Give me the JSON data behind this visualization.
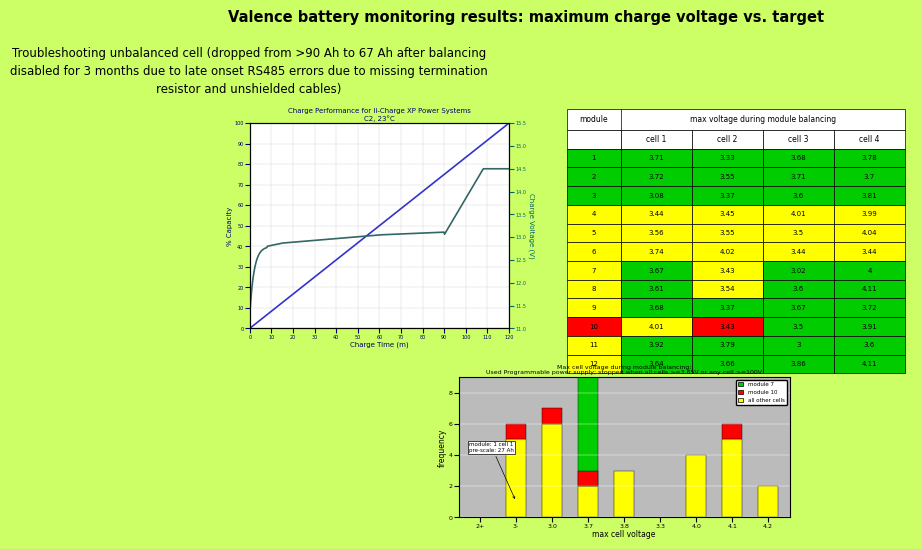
{
  "bg_color": "#ccff66",
  "title": "Valence battery monitoring results: maximum charge voltage vs. target",
  "subtitle": "Troubleshooting unbalanced cell (dropped from >90 Ah to 67 Ah after balancing\ndisabled for 3 months due to late onset RS485 errors due to missing termination\nresistor and unshielded cables)",
  "title_fontsize": 10.5,
  "subtitle_fontsize": 8.5,
  "table_data": [
    [
      1,
      3.71,
      3.33,
      3.68,
      3.78
    ],
    [
      2,
      3.72,
      3.55,
      3.71,
      3.7
    ],
    [
      3,
      3.08,
      3.37,
      3.6,
      3.81
    ],
    [
      4,
      3.44,
      3.45,
      4.01,
      3.99
    ],
    [
      5,
      3.56,
      3.55,
      3.5,
      4.04
    ],
    [
      6,
      3.74,
      4.02,
      3.44,
      3.44
    ],
    [
      7,
      3.67,
      3.43,
      3.02,
      4.0
    ],
    [
      8,
      3.61,
      3.54,
      3.6,
      4.11
    ],
    [
      9,
      3.68,
      3.37,
      3.67,
      3.72
    ],
    [
      10,
      4.01,
      3.43,
      3.5,
      3.91
    ],
    [
      11,
      3.92,
      3.79,
      3.0,
      3.6
    ],
    [
      12,
      3.64,
      3.66,
      3.86,
      4.11
    ]
  ],
  "row_colors": [
    [
      "#00cc00",
      "#00cc00",
      "#00cc00",
      "#00cc00",
      "#00cc00"
    ],
    [
      "#00cc00",
      "#00cc00",
      "#00cc00",
      "#00cc00",
      "#00cc00"
    ],
    [
      "#00cc00",
      "#00cc00",
      "#00cc00",
      "#00cc00",
      "#00cc00"
    ],
    [
      "#ffff00",
      "#ffff00",
      "#ffff00",
      "#ffff00",
      "#ffff00"
    ],
    [
      "#ffff00",
      "#ffff00",
      "#ffff00",
      "#ffff00",
      "#ffff00"
    ],
    [
      "#ffff00",
      "#ffff00",
      "#ffff00",
      "#ffff00",
      "#ffff00"
    ],
    [
      "#ffff00",
      "#00cc00",
      "#ffff00",
      "#00cc00",
      "#00cc00"
    ],
    [
      "#ffff00",
      "#00cc00",
      "#ffff00",
      "#00cc00",
      "#00cc00"
    ],
    [
      "#ffff00",
      "#00cc00",
      "#00cc00",
      "#00cc00",
      "#00cc00"
    ],
    [
      "#ff0000",
      "#ffff00",
      "#ff0000",
      "#00cc00",
      "#00cc00"
    ],
    [
      "#ffff00",
      "#00cc00",
      "#00cc00",
      "#00cc00",
      "#00cc00"
    ],
    [
      "#ffff00",
      "#00cc00",
      "#00cc00",
      "#00cc00",
      "#00cc00"
    ]
  ],
  "chart1_title": "Charge Performance for li-Charge XP Power Systems",
  "chart1_subtitle": "C2, 23°C",
  "chart2_title": "Max cell voltage during module balancing;",
  "chart2_subtitle": "Used Programmable power supply; stopped when all cells >=3.65V or any cell >=100V",
  "bar_categories": [
    "2+",
    "3-",
    "3.0",
    "3.7",
    "3.8",
    "3.3",
    "4.0",
    "4.1",
    "4.2"
  ],
  "bar_green": [
    0,
    0,
    0,
    7,
    0,
    0,
    0,
    0,
    0
  ],
  "bar_yellow": [
    0,
    5,
    6,
    2,
    3,
    0,
    4,
    5,
    2
  ],
  "bar_red": [
    0,
    1,
    1,
    1,
    0,
    0,
    0,
    1,
    0
  ],
  "legend_labels": [
    "module 7",
    "module 10",
    "all other cells"
  ]
}
